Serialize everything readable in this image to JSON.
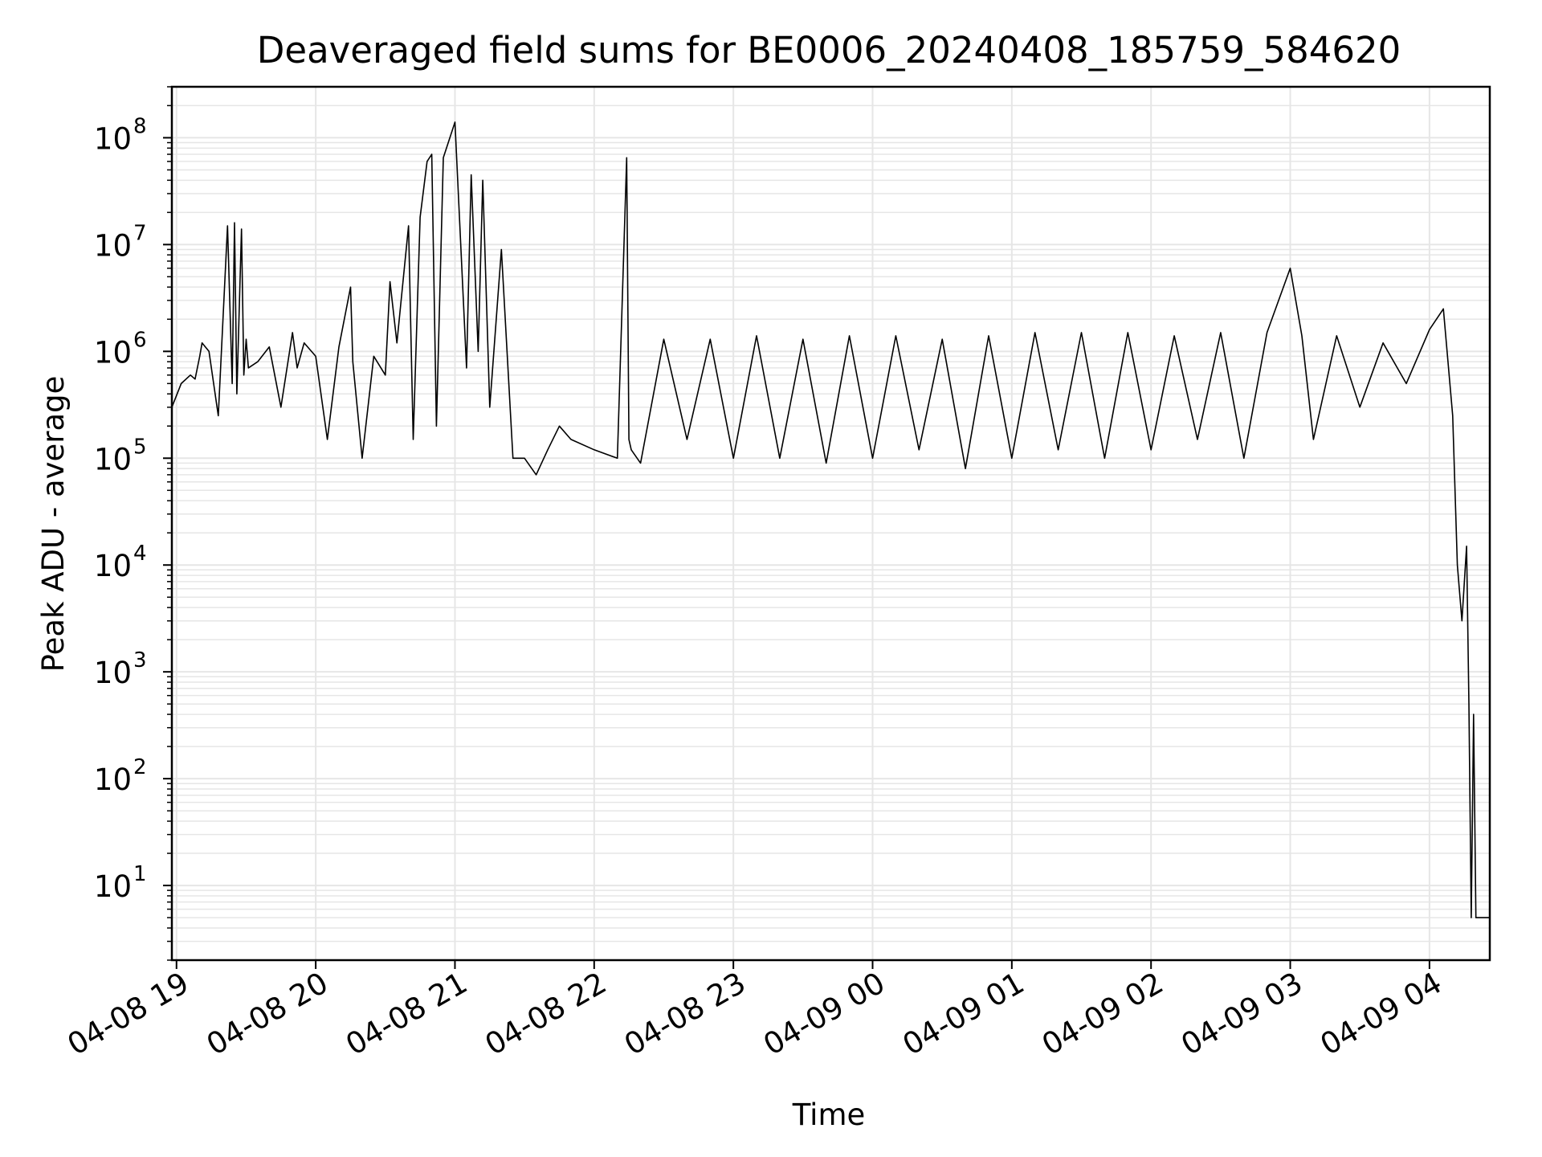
{
  "chart_data": {
    "type": "line",
    "title": "Deaveraged field sums for BE0006_20240408_185759_584620",
    "xlabel": "Time",
    "ylabel": "Peak ADU - average",
    "yscale": "log",
    "ylim": [
      2,
      300000000
    ],
    "xlim": [
      "2024-04-08 18:58",
      "2024-04-09 04:26"
    ],
    "grid": true,
    "x_tick_labels": [
      "04-08 19",
      "04-08 20",
      "04-08 21",
      "04-08 22",
      "04-08 23",
      "04-09 00",
      "04-09 01",
      "04-09 02",
      "04-09 03",
      "04-09 04"
    ],
    "x_ticks": [
      "2024-04-08 19:00",
      "2024-04-08 20:00",
      "2024-04-08 21:00",
      "2024-04-08 22:00",
      "2024-04-08 23:00",
      "2024-04-09 00:00",
      "2024-04-09 01:00",
      "2024-04-09 02:00",
      "2024-04-09 03:00",
      "2024-04-09 04:00"
    ],
    "y_ticks": [
      {
        "value": 10,
        "base": "10",
        "exp": "1"
      },
      {
        "value": 100,
        "base": "10",
        "exp": "2"
      },
      {
        "value": 1000,
        "base": "10",
        "exp": "3"
      },
      {
        "value": 10000,
        "base": "10",
        "exp": "4"
      },
      {
        "value": 100000,
        "base": "10",
        "exp": "5"
      },
      {
        "value": 1000000,
        "base": "10",
        "exp": "6"
      },
      {
        "value": 10000000,
        "base": "10",
        "exp": "7"
      },
      {
        "value": 100000000,
        "base": "10",
        "exp": "8"
      }
    ],
    "series_color": "#000000",
    "series": [
      {
        "x": [
          "2024-04-08 18:58",
          "2024-04-08 19:02",
          "2024-04-08 19:06",
          "2024-04-08 19:08",
          "2024-04-08 19:10",
          "2024-04-08 19:11",
          "2024-04-08 19:14",
          "2024-04-08 19:18",
          "2024-04-08 19:22",
          "2024-04-08 19:24",
          "2024-04-08 19:25",
          "2024-04-08 19:26",
          "2024-04-08 19:28",
          "2024-04-08 19:29",
          "2024-04-08 19:30",
          "2024-04-08 19:31",
          "2024-04-08 19:35",
          "2024-04-08 19:40",
          "2024-04-08 19:45",
          "2024-04-08 19:50",
          "2024-04-08 19:52",
          "2024-04-08 19:55",
          "2024-04-08 20:00",
          "2024-04-08 20:05",
          "2024-04-08 20:10",
          "2024-04-08 20:15",
          "2024-04-08 20:16",
          "2024-04-08 20:20",
          "2024-04-08 20:25",
          "2024-04-08 20:30",
          "2024-04-08 20:32",
          "2024-04-08 20:35",
          "2024-04-08 20:40",
          "2024-04-08 20:42",
          "2024-04-08 20:45",
          "2024-04-08 20:48",
          "2024-04-08 20:50",
          "2024-04-08 20:52",
          "2024-04-08 20:55",
          "2024-04-08 21:00",
          "2024-04-08 21:05",
          "2024-04-08 21:07",
          "2024-04-08 21:10",
          "2024-04-08 21:12",
          "2024-04-08 21:15",
          "2024-04-08 21:20",
          "2024-04-08 21:25",
          "2024-04-08 21:30",
          "2024-04-08 21:35",
          "2024-04-08 21:40",
          "2024-04-08 21:45",
          "2024-04-08 21:50",
          "2024-04-08 22:00",
          "2024-04-08 22:10",
          "2024-04-08 22:14",
          "2024-04-08 22:15",
          "2024-04-08 22:16",
          "2024-04-08 22:20",
          "2024-04-08 22:30",
          "2024-04-08 22:40",
          "2024-04-08 22:50",
          "2024-04-08 23:00",
          "2024-04-08 23:10",
          "2024-04-08 23:20",
          "2024-04-08 23:30",
          "2024-04-08 23:40",
          "2024-04-08 23:50",
          "2024-04-09 00:00",
          "2024-04-09 00:10",
          "2024-04-09 00:20",
          "2024-04-09 00:30",
          "2024-04-09 00:40",
          "2024-04-09 00:50",
          "2024-04-09 01:00",
          "2024-04-09 01:10",
          "2024-04-09 01:20",
          "2024-04-09 01:30",
          "2024-04-09 01:40",
          "2024-04-09 01:50",
          "2024-04-09 02:00",
          "2024-04-09 02:10",
          "2024-04-09 02:20",
          "2024-04-09 02:30",
          "2024-04-09 02:40",
          "2024-04-09 02:50",
          "2024-04-09 03:00",
          "2024-04-09 03:05",
          "2024-04-09 03:10",
          "2024-04-09 03:20",
          "2024-04-09 03:30",
          "2024-04-09 03:40",
          "2024-04-09 03:50",
          "2024-04-09 04:00",
          "2024-04-09 04:06",
          "2024-04-09 04:10",
          "2024-04-09 04:12",
          "2024-04-09 04:14",
          "2024-04-09 04:16",
          "2024-04-09 04:17",
          "2024-04-09 04:18",
          "2024-04-09 04:19",
          "2024-04-09 04:20",
          "2024-04-09 04:21",
          "2024-04-09 04:22",
          "2024-04-09 04:24",
          "2024-04-09 04:25",
          "2024-04-09 04:26"
        ],
        "y": [
          300000,
          500000,
          600000,
          550000,
          900000,
          1200000,
          1000000,
          250000,
          15000000,
          500000,
          16000000,
          400000,
          14000000,
          600000,
          1300000,
          700000,
          800000,
          1100000,
          300000,
          1500000,
          700000,
          1200000,
          900000,
          150000,
          1100000,
          4000000,
          800000,
          100000,
          900000,
          600000,
          4500000,
          1200000,
          15000000,
          150000,
          18000000,
          60000000,
          70000000,
          200000,
          65000000,
          140000000,
          700000,
          45000000,
          1000000,
          40000000,
          300000,
          9000000,
          100000,
          100000,
          70000,
          120000,
          200000,
          150000,
          120000,
          100000,
          65000000,
          150000,
          120000,
          90000,
          1300000,
          150000,
          1300000,
          100000,
          1400000,
          100000,
          1300000,
          90000,
          1400000,
          100000,
          1400000,
          120000,
          1300000,
          80000,
          1400000,
          100000,
          1500000,
          120000,
          1500000,
          100000,
          1500000,
          120000,
          1400000,
          150000,
          1500000,
          100000,
          1500000,
          6000000,
          1400000,
          150000,
          1400000,
          300000,
          1200000,
          500000,
          1600000,
          2500000,
          250000,
          10000,
          3000,
          15000,
          500,
          5,
          400,
          5,
          5,
          5,
          5,
          5,
          5
        ]
      }
    ]
  }
}
